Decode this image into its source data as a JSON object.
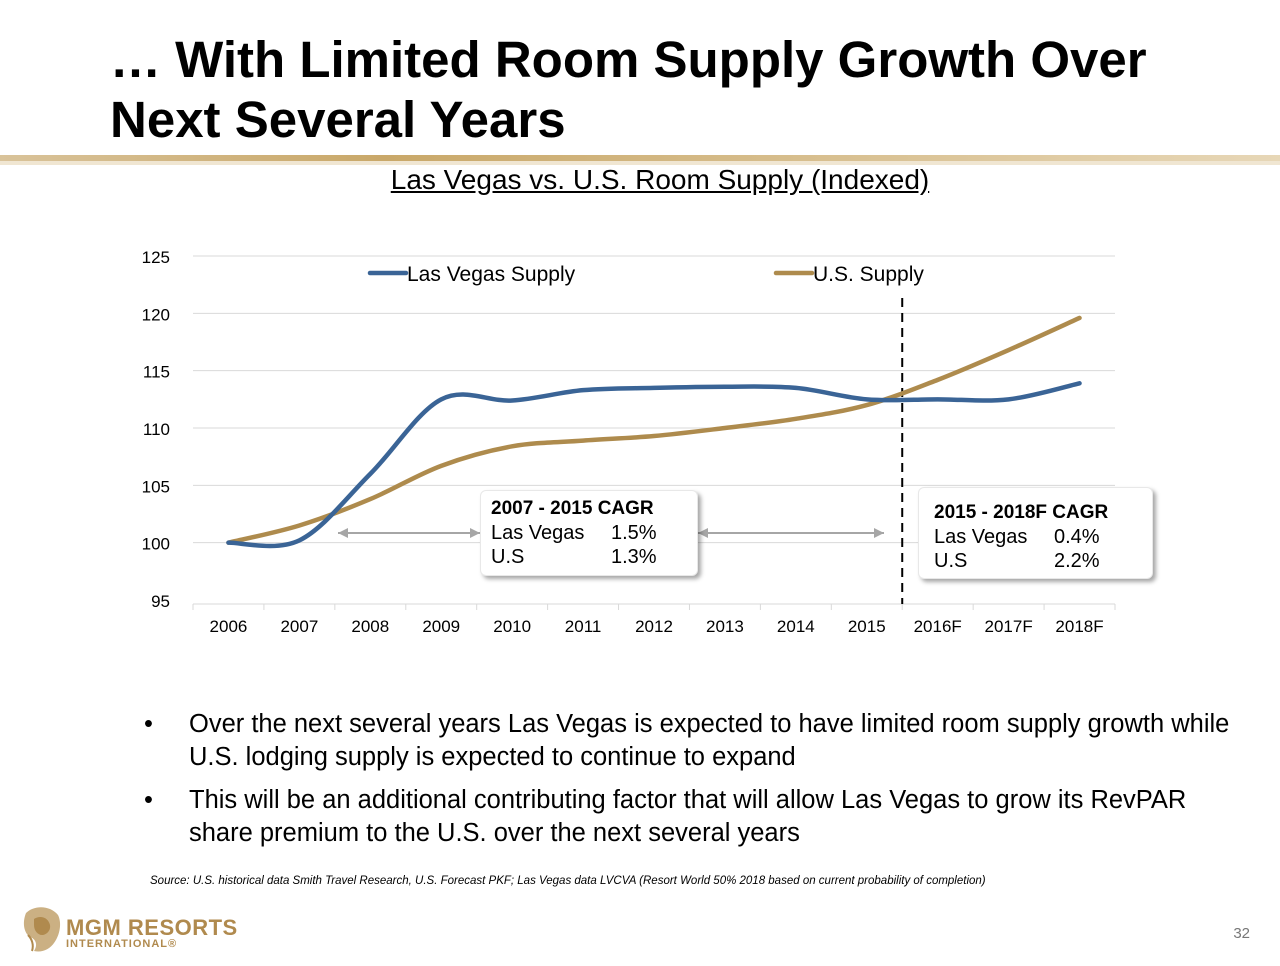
{
  "slide": {
    "title_line1": "… With Limited Room Supply Growth Over",
    "title_line2": "Next Several Years",
    "page_number": "32",
    "source": "Source: U.S. historical data Smith Travel Research, U.S. Forecast PKF; Las Vegas data LVCVA (Resort World 50% 2018 based on current probability of completion)",
    "bullets": [
      "Over the next several years Las Vegas is expected to have limited room supply growth while U.S. lodging supply is expected to continue to expand",
      "This will be an additional contributing factor that will allow Las Vegas to grow its RevPAR share premium to the U.S. over the next several years"
    ],
    "bullet_symbol": "•"
  },
  "logo": {
    "name": "MGM RESORTS",
    "sub": "INTERNATIONAL®",
    "icon": "lion-icon"
  },
  "callouts": {
    "left": {
      "heading": "2007 - 2015 CAGR",
      "rows": [
        {
          "label": "Las Vegas",
          "value": "1.5%"
        },
        {
          "label": "U.S",
          "value": "1.3%"
        }
      ]
    },
    "right": {
      "heading": "2015 - 2018F CAGR",
      "rows": [
        {
          "label": "Las Vegas",
          "value": "0.4%"
        },
        {
          "label": "U.S",
          "value": "2.2%"
        }
      ]
    }
  },
  "colors": {
    "las_vegas": "#3a6496",
    "us": "#ae8b4d",
    "gold": "#b08a4e"
  },
  "chart_data": {
    "type": "line",
    "title": "Las Vegas vs. U.S. Room Supply (Indexed)",
    "categories": [
      "2006",
      "2007",
      "2008",
      "2009",
      "2010",
      "2011",
      "2012",
      "2013",
      "2014",
      "2015",
      "2016F",
      "2017F",
      "2018F"
    ],
    "series": [
      {
        "name": "Las Vegas Supply",
        "values": [
          100.0,
          100.2,
          106.0,
          112.5,
          112.4,
          113.3,
          113.5,
          113.6,
          113.5,
          112.5,
          112.5,
          112.5,
          113.9
        ],
        "color": "#3a6496"
      },
      {
        "name": "U.S. Supply",
        "values": [
          100.0,
          101.5,
          103.8,
          106.7,
          108.4,
          108.9,
          109.3,
          110.0,
          110.8,
          112.0,
          114.2,
          116.8,
          119.6
        ],
        "color": "#ae8b4d"
      }
    ],
    "ylim": [
      95,
      125
    ],
    "yticks": [
      95,
      100,
      105,
      110,
      115,
      120,
      125
    ],
    "grid": true,
    "legend_position": "top",
    "forecast_divider_after": "2015"
  }
}
